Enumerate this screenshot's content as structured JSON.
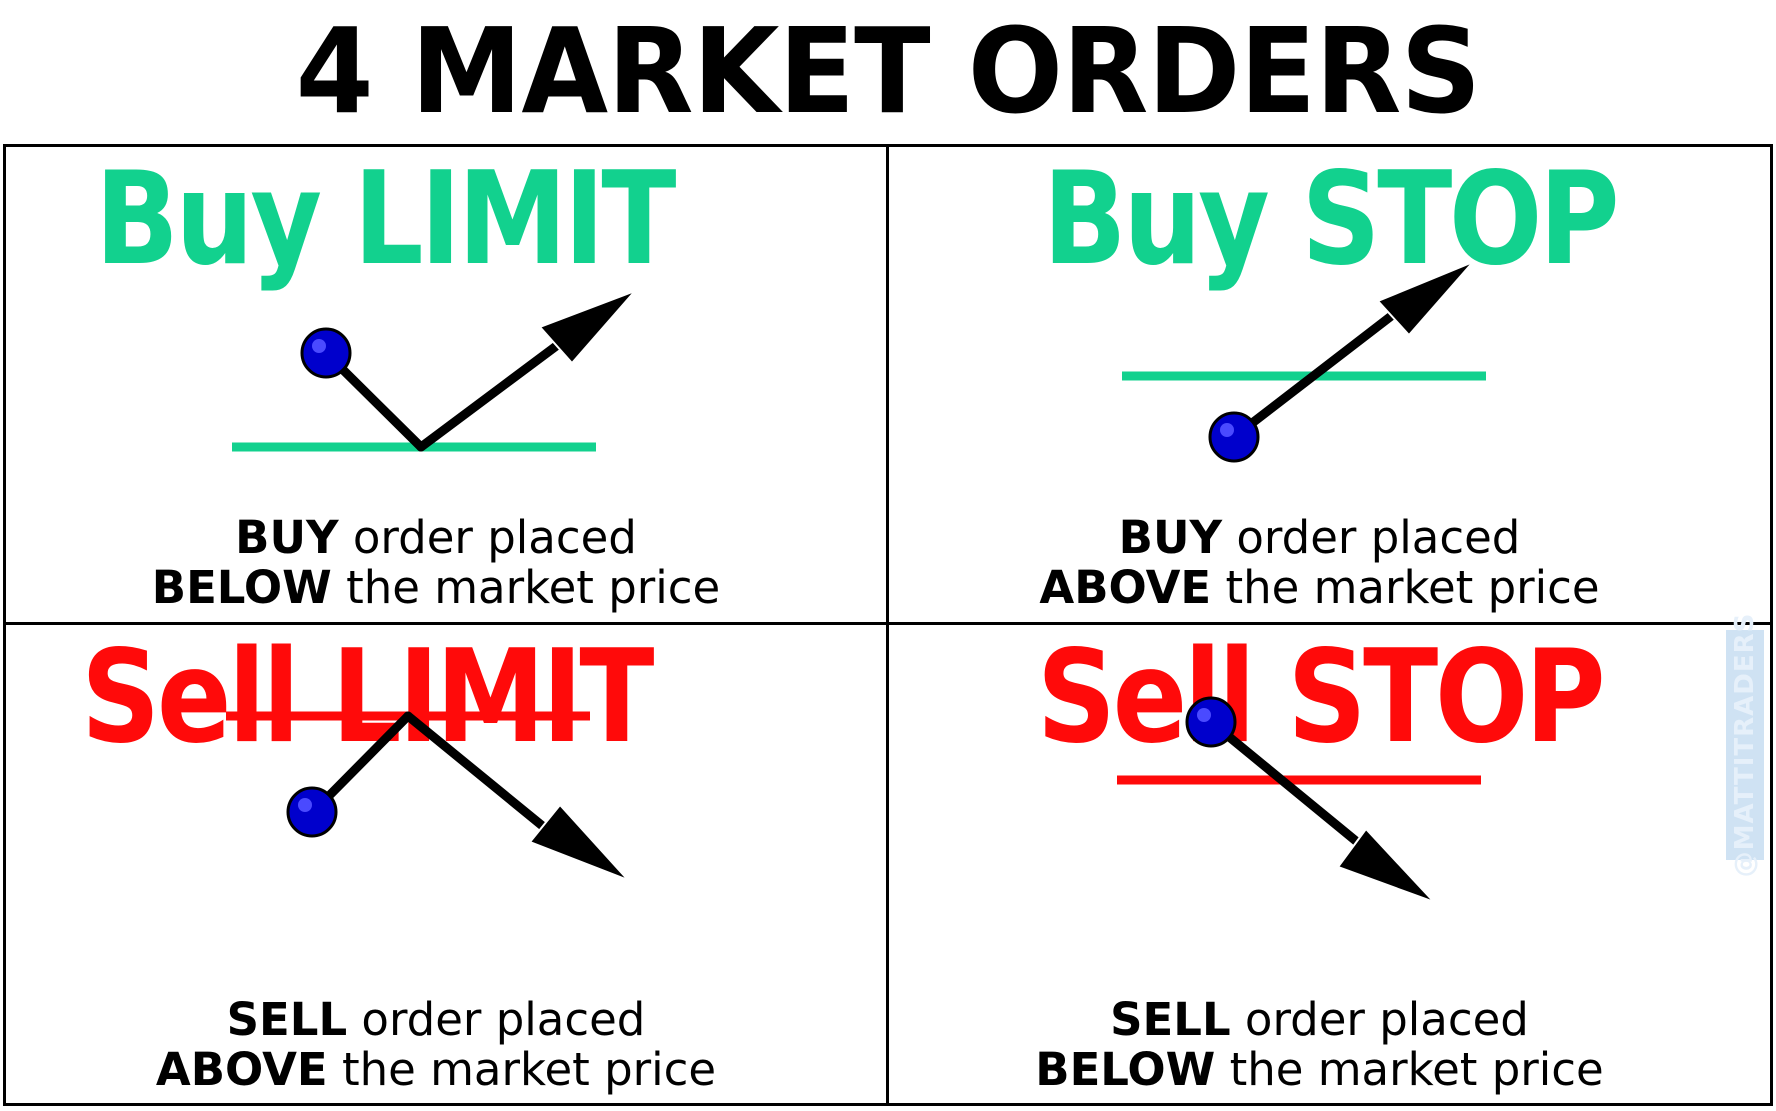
{
  "title": "4 MARKET ORDERS",
  "colors": {
    "buy": "#12d18e",
    "sell": "#ff0a0a",
    "marker": "#0000cc",
    "arrow": "#000000"
  },
  "quadrants": [
    {
      "title": "Buy LIMIT",
      "kind": "buy",
      "line1_bold": "BUY",
      "line1_rest": " order placed",
      "line2_bold": "BELOW",
      "line2_rest": " the market price"
    },
    {
      "title": "Buy STOP",
      "kind": "buy",
      "line1_bold": "BUY",
      "line1_rest": " order placed",
      "line2_bold": "ABOVE",
      "line2_rest": " the market price"
    },
    {
      "title": "Sell LIMIT",
      "kind": "sell",
      "line1_bold": "SELL",
      "line1_rest": " order placed",
      "line2_bold": "ABOVE",
      "line2_rest": " the market price"
    },
    {
      "title": "Sell STOP",
      "kind": "sell",
      "line1_bold": "SELL",
      "line1_rest": " order placed",
      "line2_bold": "BELOW",
      "line2_rest": " the market price"
    }
  ],
  "watermark": "@MATTITRADERS"
}
